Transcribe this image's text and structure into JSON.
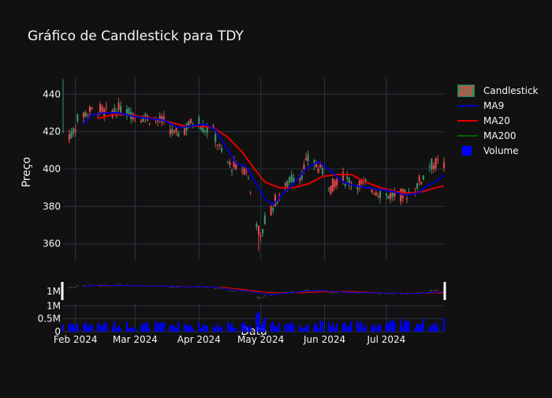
{
  "chart_data": {
    "type": "candlestick",
    "title": "Gráfico de Candlestick para TDY",
    "ylabel": "Preço",
    "xlabel": "Data",
    "price_ylim": [
      351,
      449
    ],
    "price_yticks": [
      360,
      380,
      400,
      420,
      440
    ],
    "volume_ylim": [
      0,
      1.1
    ],
    "volume_yticks": [
      {
        "v": 0,
        "label": "0"
      },
      {
        "v": 0.5,
        "label": "0.5M"
      },
      {
        "v": 1.0,
        "label": "1M"
      }
    ],
    "x_range": [
      "2024-01-26",
      "2024-07-29"
    ],
    "x_ticks": [
      {
        "date": "2024-02-01",
        "label": "Feb 2024"
      },
      {
        "date": "2024-03-01",
        "label": "Mar 2024"
      },
      {
        "date": "2024-04-01",
        "label": "Apr 2024"
      },
      {
        "date": "2024-05-01",
        "label": "May 2024"
      },
      {
        "date": "2024-06-01",
        "label": "Jun 2024"
      },
      {
        "date": "2024-07-01",
        "label": "Jul 2024"
      }
    ],
    "grid": true,
    "legend_position": "top-right",
    "legend": [
      {
        "name": "Candlestick",
        "color": "#2e8b57",
        "kind": "candle"
      },
      {
        "name": "MA9",
        "color": "#0000cc",
        "kind": "line"
      },
      {
        "name": "MA20",
        "color": "#e00000",
        "kind": "line"
      },
      {
        "name": "MA200",
        "color": "#006400",
        "kind": "line"
      },
      {
        "name": "Volume",
        "color": "#0000ff",
        "kind": "square"
      }
    ],
    "colors": {
      "up": "#3d8f6a",
      "down": "#e04848",
      "volume": "#0000ff",
      "ma9": "#0000cc",
      "ma20": "#e00000",
      "ma200": "#006400"
    },
    "price_anchors": [
      [
        "2024-01-26",
        420
      ],
      [
        "2024-01-30",
        418
      ],
      [
        "2024-02-02",
        426
      ],
      [
        "2024-02-06",
        430
      ],
      [
        "2024-02-12",
        432
      ],
      [
        "2024-02-16",
        430
      ],
      [
        "2024-02-22",
        432
      ],
      [
        "2024-02-28",
        430
      ],
      [
        "2024-03-05",
        428
      ],
      [
        "2024-03-12",
        426
      ],
      [
        "2024-03-16",
        425
      ],
      [
        "2024-03-20",
        418
      ],
      [
        "2024-03-23",
        420
      ],
      [
        "2024-03-28",
        424
      ],
      [
        "2024-04-01",
        426
      ],
      [
        "2024-04-03",
        422
      ],
      [
        "2024-04-08",
        420
      ],
      [
        "2024-04-12",
        408
      ],
      [
        "2024-04-16",
        402
      ],
      [
        "2024-04-19",
        401
      ],
      [
        "2024-04-24",
        400
      ],
      [
        "2024-04-26",
        388
      ],
      [
        "2024-04-29",
        372
      ],
      [
        "2024-05-01",
        362
      ],
      [
        "2024-05-03",
        372
      ],
      [
        "2024-05-08",
        383
      ],
      [
        "2024-05-12",
        388
      ],
      [
        "2024-05-16",
        395
      ],
      [
        "2024-05-21",
        398
      ],
      [
        "2024-05-24",
        405
      ],
      [
        "2024-05-28",
        402
      ],
      [
        "2024-06-01",
        398
      ],
      [
        "2024-06-04",
        390
      ],
      [
        "2024-06-08",
        396
      ],
      [
        "2024-06-12",
        394
      ],
      [
        "2024-06-18",
        392
      ],
      [
        "2024-06-24",
        390
      ],
      [
        "2024-06-30",
        386
      ],
      [
        "2024-07-05",
        386
      ],
      [
        "2024-07-10",
        386
      ],
      [
        "2024-07-15",
        390
      ],
      [
        "2024-07-19",
        396
      ],
      [
        "2024-07-22",
        402
      ],
      [
        "2024-07-26",
        403
      ],
      [
        "2024-07-29",
        402
      ]
    ],
    "ma9": [
      [
        "2024-02-05",
        424
      ],
      [
        "2024-02-09",
        429
      ],
      [
        "2024-02-15",
        430
      ],
      [
        "2024-02-22",
        430
      ],
      [
        "2024-03-01",
        428
      ],
      [
        "2024-03-08",
        427
      ],
      [
        "2024-03-15",
        426
      ],
      [
        "2024-03-22",
        422
      ],
      [
        "2024-03-28",
        423
      ],
      [
        "2024-04-04",
        424
      ],
      [
        "2024-04-09",
        421
      ],
      [
        "2024-04-14",
        412
      ],
      [
        "2024-04-19",
        403
      ],
      [
        "2024-04-24",
        401
      ],
      [
        "2024-04-29",
        392
      ],
      [
        "2024-05-03",
        384
      ],
      [
        "2024-05-07",
        381
      ],
      [
        "2024-05-12",
        387
      ],
      [
        "2024-05-17",
        392
      ],
      [
        "2024-05-23",
        400
      ],
      [
        "2024-05-29",
        404
      ],
      [
        "2024-06-04",
        399
      ],
      [
        "2024-06-10",
        393
      ],
      [
        "2024-06-16",
        391
      ],
      [
        "2024-06-22",
        390
      ],
      [
        "2024-06-28",
        389
      ],
      [
        "2024-07-04",
        388
      ],
      [
        "2024-07-10",
        386
      ],
      [
        "2024-07-16",
        387
      ],
      [
        "2024-07-21",
        391
      ],
      [
        "2024-07-26",
        394
      ],
      [
        "2024-07-29",
        397
      ]
    ],
    "ma20": [
      [
        "2024-02-12",
        427
      ],
      [
        "2024-02-19",
        429
      ],
      [
        "2024-02-26",
        429
      ],
      [
        "2024-03-04",
        428
      ],
      [
        "2024-03-11",
        427
      ],
      [
        "2024-03-18",
        425
      ],
      [
        "2024-03-25",
        423
      ],
      [
        "2024-04-01",
        423
      ],
      [
        "2024-04-08",
        422
      ],
      [
        "2024-04-15",
        417
      ],
      [
        "2024-04-22",
        409
      ],
      [
        "2024-04-28",
        400
      ],
      [
        "2024-05-03",
        393
      ],
      [
        "2024-05-10",
        390
      ],
      [
        "2024-05-17",
        390
      ],
      [
        "2024-05-24",
        392
      ],
      [
        "2024-05-31",
        396
      ],
      [
        "2024-06-07",
        397
      ],
      [
        "2024-06-14",
        397
      ],
      [
        "2024-06-21",
        393
      ],
      [
        "2024-06-28",
        390
      ],
      [
        "2024-07-05",
        388
      ],
      [
        "2024-07-12",
        387
      ],
      [
        "2024-07-19",
        388
      ],
      [
        "2024-07-25",
        390
      ],
      [
        "2024-07-29",
        391
      ]
    ],
    "volume_anchors": [
      [
        "2024-01-26",
        0.35
      ],
      [
        "2024-02-20",
        0.3
      ],
      [
        "2024-03-20",
        0.28
      ],
      [
        "2024-04-20",
        0.3
      ],
      [
        "2024-04-30",
        0.55
      ],
      [
        "2024-05-10",
        0.35
      ],
      [
        "2024-06-10",
        0.3
      ],
      [
        "2024-07-10",
        0.35
      ],
      [
        "2024-07-29",
        0.4
      ]
    ]
  }
}
